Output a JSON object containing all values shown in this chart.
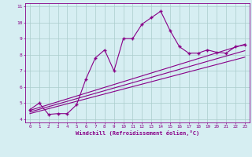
{
  "title": "",
  "xlabel": "Windchill (Refroidissement éolien,°C)",
  "ylabel": "",
  "bg_color": "#d6eef2",
  "line_color": "#880088",
  "grid_color": "#aacccc",
  "xlim": [
    -0.5,
    23.5
  ],
  "ylim": [
    3.8,
    11.2
  ],
  "yticks": [
    4,
    5,
    6,
    7,
    8,
    9,
    10,
    11
  ],
  "xticks": [
    0,
    1,
    2,
    3,
    4,
    5,
    6,
    7,
    8,
    9,
    10,
    11,
    12,
    13,
    14,
    15,
    16,
    17,
    18,
    19,
    20,
    21,
    22,
    23
  ],
  "curve_x": [
    0,
    1,
    2,
    3,
    4,
    5,
    6,
    7,
    8,
    9,
    10,
    11,
    12,
    13,
    14,
    15,
    16,
    17,
    18,
    19,
    20,
    21,
    22,
    23
  ],
  "curve_y": [
    4.6,
    5.0,
    4.3,
    4.35,
    4.35,
    4.9,
    6.5,
    7.8,
    8.3,
    7.0,
    9.0,
    9.0,
    9.9,
    10.3,
    10.7,
    9.5,
    8.5,
    8.1,
    8.1,
    8.3,
    8.15,
    8.1,
    8.5,
    8.6
  ],
  "line1_x": [
    0,
    23
  ],
  "line1_y": [
    4.55,
    8.65
  ],
  "line2_x": [
    0,
    23
  ],
  "line2_y": [
    4.35,
    7.85
  ],
  "line3_x": [
    0,
    23
  ],
  "line3_y": [
    4.45,
    8.25
  ]
}
